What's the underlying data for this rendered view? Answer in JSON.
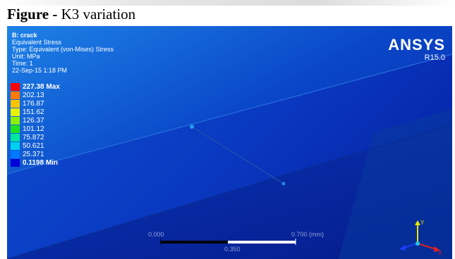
{
  "figure": {
    "label": "Figure -",
    "title": "K3 variation"
  },
  "result": {
    "model": "B: crack",
    "name": "Equivalent Stress",
    "type": "Type: Equivalent (von-Mises) Stress",
    "unit": "Unit: MPa",
    "time": "Time: 1",
    "date": "22-Sep-15 1:18 PM"
  },
  "legend": [
    {
      "label": "227.38 Max",
      "color": "#ff0000",
      "strong": true
    },
    {
      "label": "202.13",
      "color": "#ff7a00"
    },
    {
      "label": "176.87",
      "color": "#ffc400"
    },
    {
      "label": "151.62",
      "color": "#e9f200"
    },
    {
      "label": "126.37",
      "color": "#8cf000"
    },
    {
      "label": "101.12",
      "color": "#1ee51e"
    },
    {
      "label": "75.872",
      "color": "#00e6a0"
    },
    {
      "label": "50.621",
      "color": "#00d0f0"
    },
    {
      "label": "25.371",
      "color": "#0078ff"
    },
    {
      "label": "0.1198 Min",
      "color": "#0000d8",
      "strong": true
    }
  ],
  "logo": {
    "name": "ANSYS",
    "version": "R15.0"
  },
  "scale": {
    "start": "0.000",
    "end": "0.700 (mm)",
    "mid": "0.350"
  }
}
